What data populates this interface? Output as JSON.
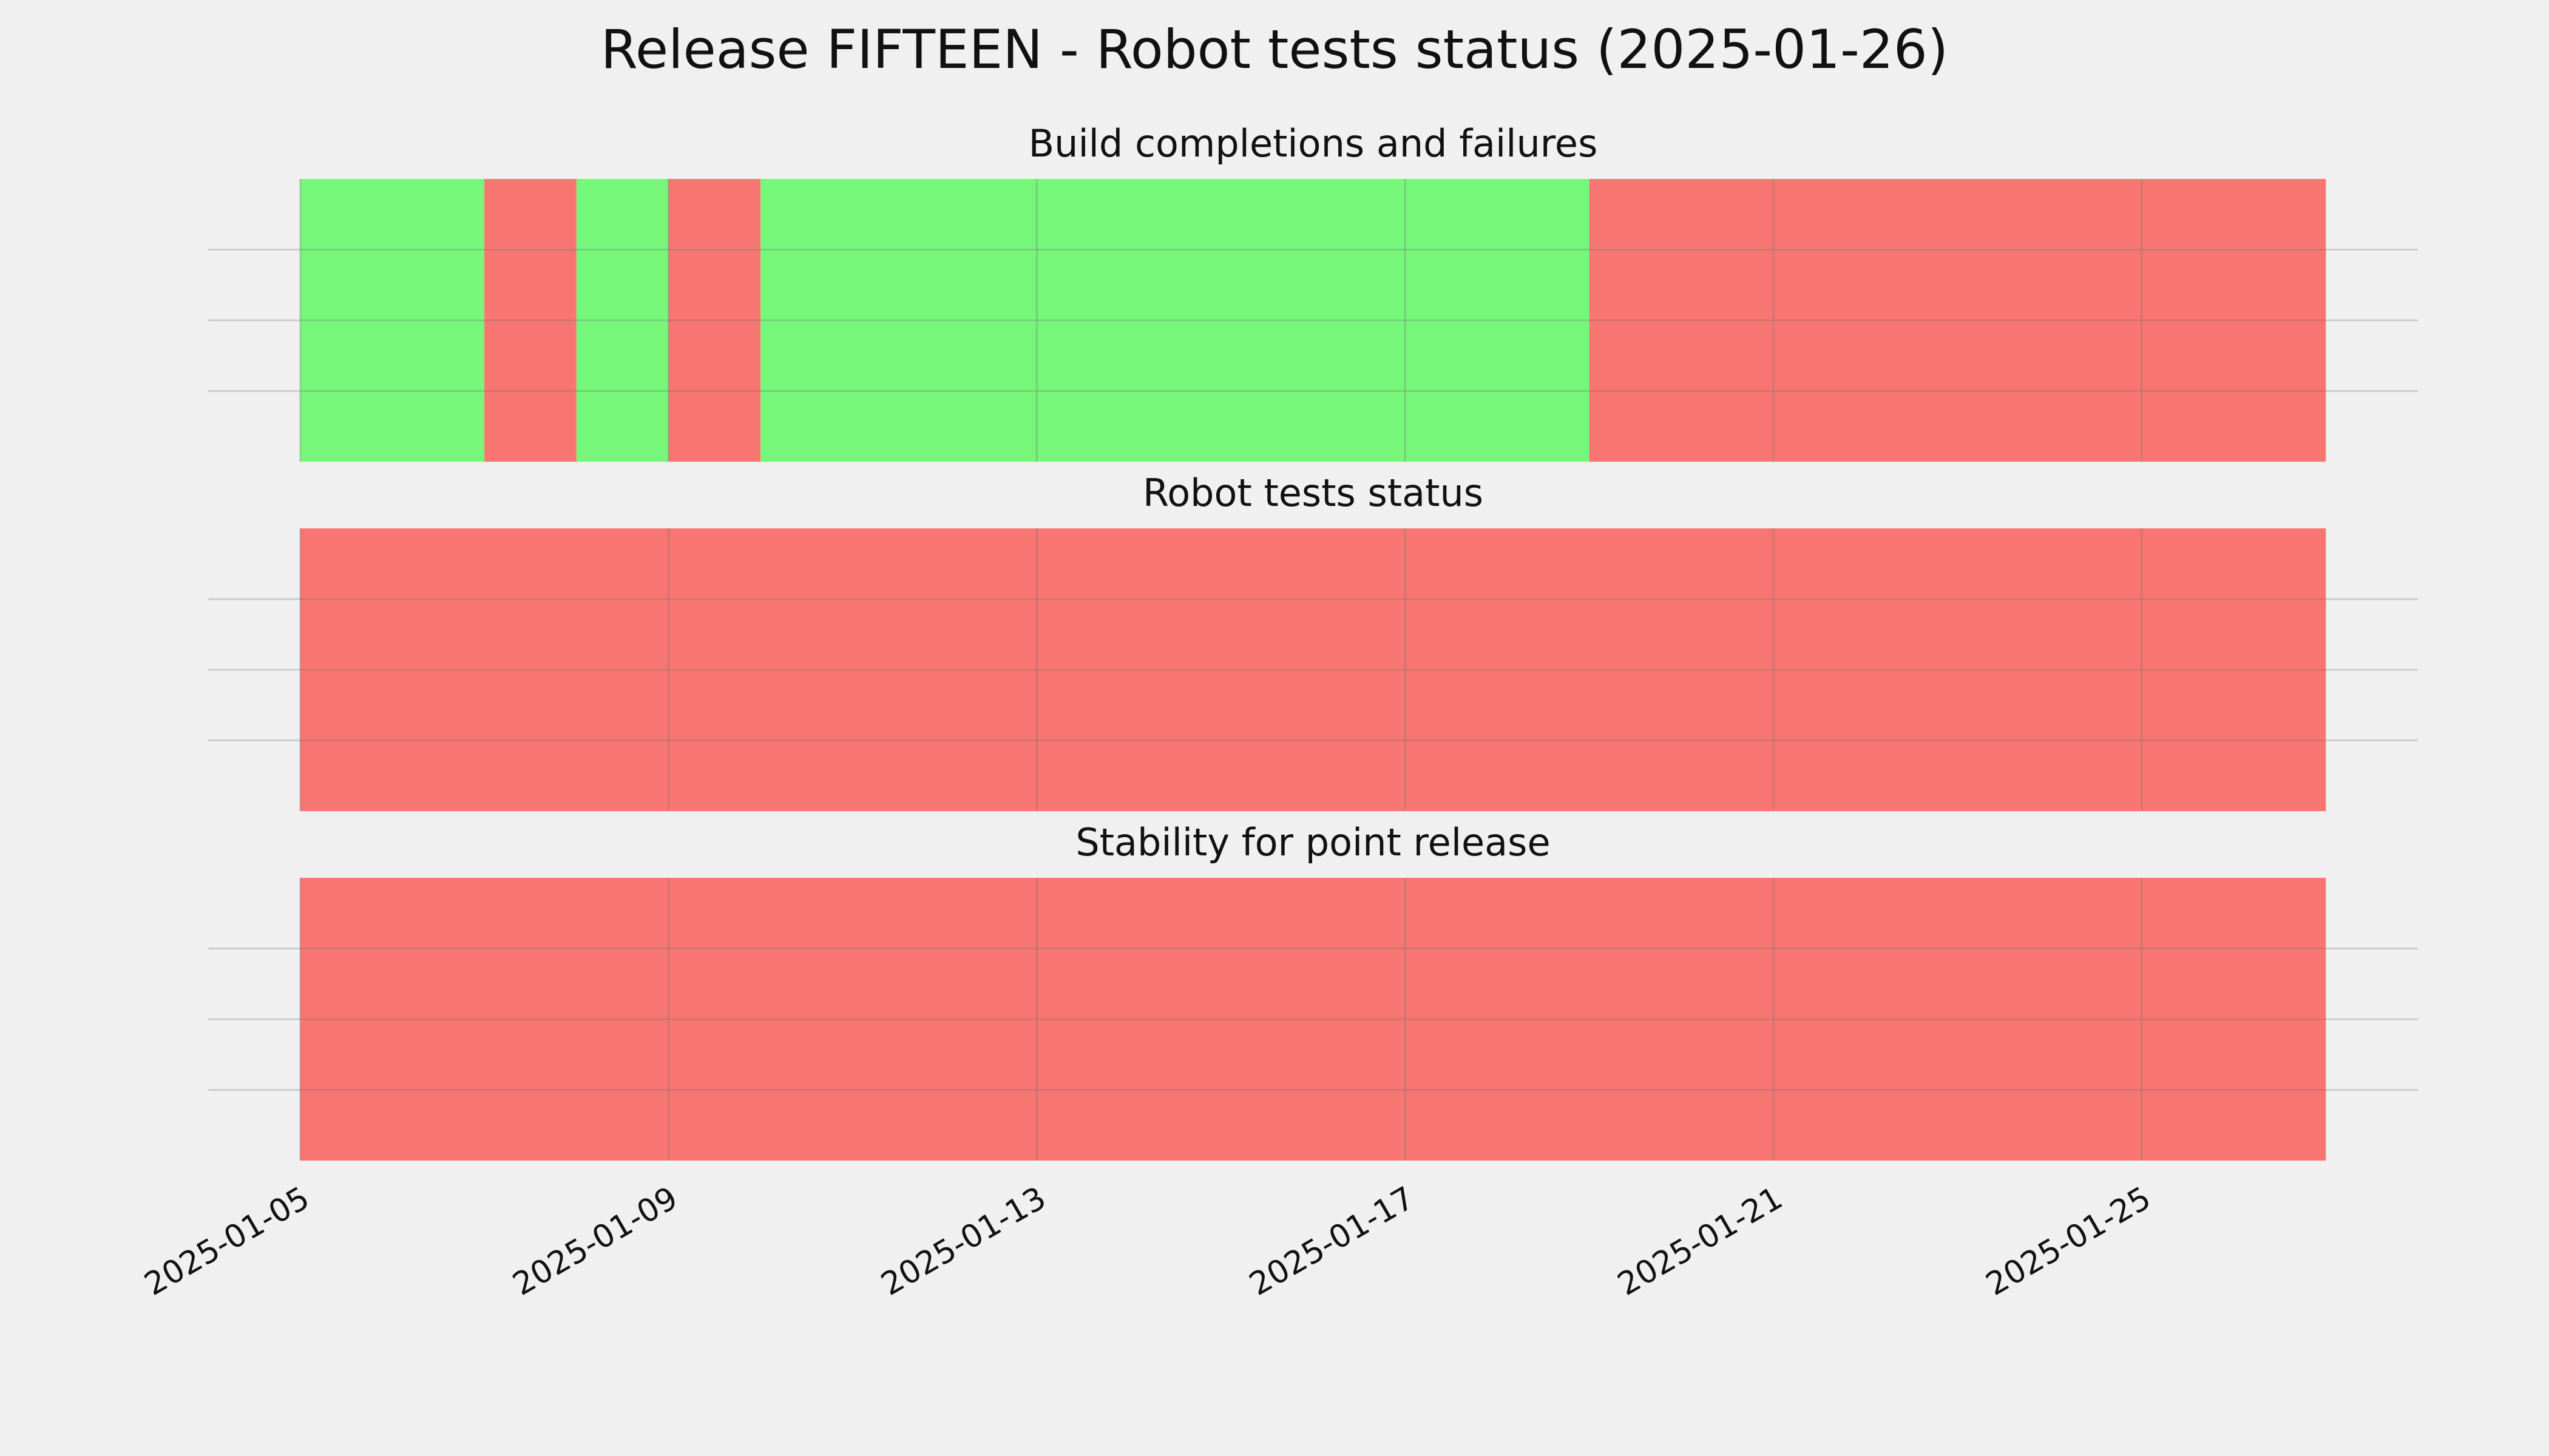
{
  "title": "Release FIFTEEN - Robot tests status (2025-01-26)",
  "chart_data": [
    {
      "type": "timeline",
      "title": "Build completions and failures",
      "starts": [
        "2025-01-05",
        "2025-01-07",
        "2025-01-08",
        "2025-01-09",
        "2025-01-10",
        "2025-01-19"
      ],
      "ends": [
        "2025-01-07",
        "2025-01-08",
        "2025-01-09",
        "2025-01-10",
        "2025-01-19",
        "2025-01-27"
      ],
      "colors": [
        "#76f77a",
        "#f77672",
        "#76f77a",
        "#f77672",
        "#76f77a",
        "#f77672"
      ],
      "xlim": [
        "2025-01-04",
        "2025-01-28"
      ],
      "xticks": [
        "2025-01-05",
        "2025-01-09",
        "2025-01-13",
        "2025-01-17",
        "2025-01-21",
        "2025-01-25"
      ],
      "grid": true
    },
    {
      "type": "timeline",
      "title": "Robot tests status",
      "starts": [
        "2025-01-05"
      ],
      "ends": [
        "2025-01-27"
      ],
      "colors": [
        "#f77672"
      ],
      "xlim": [
        "2025-01-04",
        "2025-01-28"
      ],
      "xticks": [
        "2025-01-05",
        "2025-01-09",
        "2025-01-13",
        "2025-01-17",
        "2025-01-21",
        "2025-01-25"
      ],
      "grid": true
    },
    {
      "type": "timeline",
      "title": "Stability for point release",
      "starts": [
        "2025-01-05"
      ],
      "ends": [
        "2025-01-27"
      ],
      "colors": [
        "#f77672"
      ],
      "xlim": [
        "2025-01-04",
        "2025-01-28"
      ],
      "xticks": [
        "2025-01-05",
        "2025-01-09",
        "2025-01-13",
        "2025-01-17",
        "2025-01-21",
        "2025-01-25"
      ],
      "grid": true
    }
  ]
}
